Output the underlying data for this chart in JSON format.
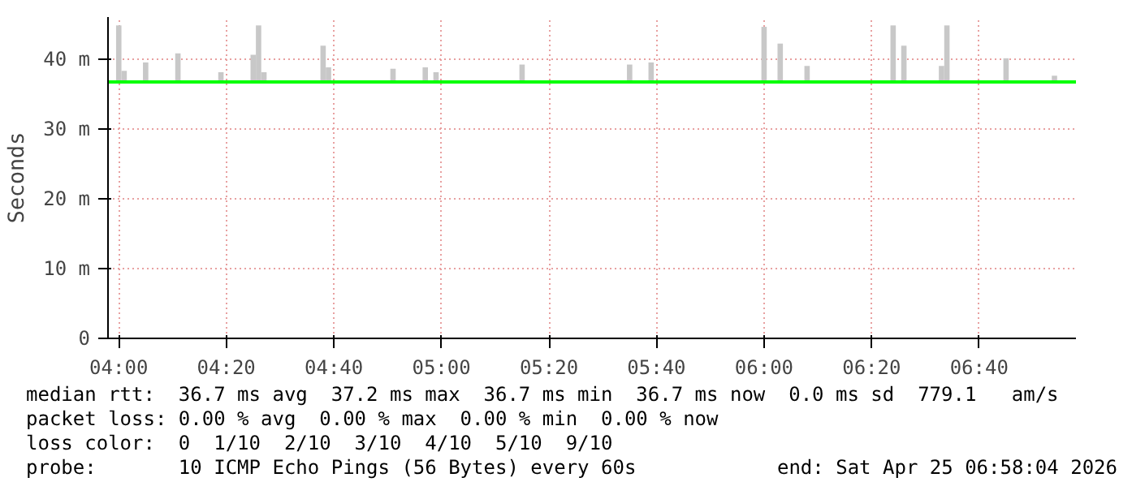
{
  "chart_data": {
    "type": "bar",
    "ylabel": "Seconds",
    "ylim": [
      0,
      46
    ],
    "yticks": [
      {
        "value": 0,
        "label": "0"
      },
      {
        "value": 10,
        "label": "10 m"
      },
      {
        "value": 20,
        "label": "20 m"
      },
      {
        "value": 30,
        "label": "30 m"
      },
      {
        "value": 40,
        "label": "40 m"
      }
    ],
    "xlim": [
      "2026-04-25T03:58",
      "2026-04-25T06:58"
    ],
    "xticks": [
      {
        "value": "2026-04-25T04:00",
        "label": "04:00"
      },
      {
        "value": "2026-04-25T04:20",
        "label": "04:20"
      },
      {
        "value": "2026-04-25T04:40",
        "label": "04:40"
      },
      {
        "value": "2026-04-25T05:00",
        "label": "05:00"
      },
      {
        "value": "2026-04-25T05:20",
        "label": "05:20"
      },
      {
        "value": "2026-04-25T05:40",
        "label": "05:40"
      },
      {
        "value": "2026-04-25T06:00",
        "label": "06:00"
      },
      {
        "value": "2026-04-25T06:20",
        "label": "06:20"
      },
      {
        "value": "2026-04-25T06:40",
        "label": "06:40"
      }
    ],
    "grid": true,
    "series": [
      {
        "color": "#c8c8c8",
        "x": [
          "2026-04-25T04:00",
          "2026-04-25T04:01",
          "2026-04-25T04:05",
          "2026-04-25T04:11",
          "2026-04-25T04:19",
          "2026-04-25T04:25",
          "2026-04-25T04:26",
          "2026-04-25T04:27",
          "2026-04-25T04:38",
          "2026-04-25T04:39",
          "2026-04-25T04:51",
          "2026-04-25T04:57",
          "2026-04-25T04:59",
          "2026-04-25T05:15",
          "2026-04-25T05:35",
          "2026-04-25T05:39",
          "2026-04-25T06:00",
          "2026-04-25T06:03",
          "2026-04-25T06:08",
          "2026-04-25T06:24",
          "2026-04-25T06:26",
          "2026-04-25T06:33",
          "2026-04-25T06:34",
          "2026-04-25T06:45",
          "2026-04-25T06:54"
        ],
        "base": [
          36.7,
          36.7,
          36.7,
          36.7,
          36.7,
          36.7,
          36.7,
          36.7,
          36.7,
          36.7,
          36.7,
          36.7,
          36.7,
          36.7,
          36.7,
          36.7,
          36.7,
          36.7,
          36.7,
          36.7,
          36.7,
          36.7,
          36.7,
          36.7,
          36.7
        ],
        "values": [
          8.1,
          1.6,
          2.8,
          4.1,
          1.4,
          3.9,
          8.1,
          1.4,
          5.2,
          2.1,
          1.9,
          2.1,
          1.4,
          2.5,
          2.5,
          2.8,
          7.9,
          5.5,
          2.3,
          8.1,
          5.2,
          2.3,
          8.1,
          3.4,
          0.9
        ]
      },
      {
        "type": "line",
        "color": "#00ff00",
        "x": [
          "2026-04-25T03:58",
          "2026-04-25T06:58"
        ],
        "values": [
          36.7,
          36.7
        ]
      }
    ],
    "annotations": [
      "median rtt:  36.7 ms avg  37.2 ms max  36.7 ms min  36.7 ms now  0.0 ms sd  779.1   am/s",
      "packet loss: 0.00 % avg  0.00 % max  0.00 % min  0.00 % now",
      "loss color:  0  1/10  2/10  3/10  4/10  5/10  9/10",
      "probe:       10 ICMP Echo Pings (56 Bytes) every 60s",
      "end: Sat Apr 25 06:58:04 2026"
    ]
  }
}
